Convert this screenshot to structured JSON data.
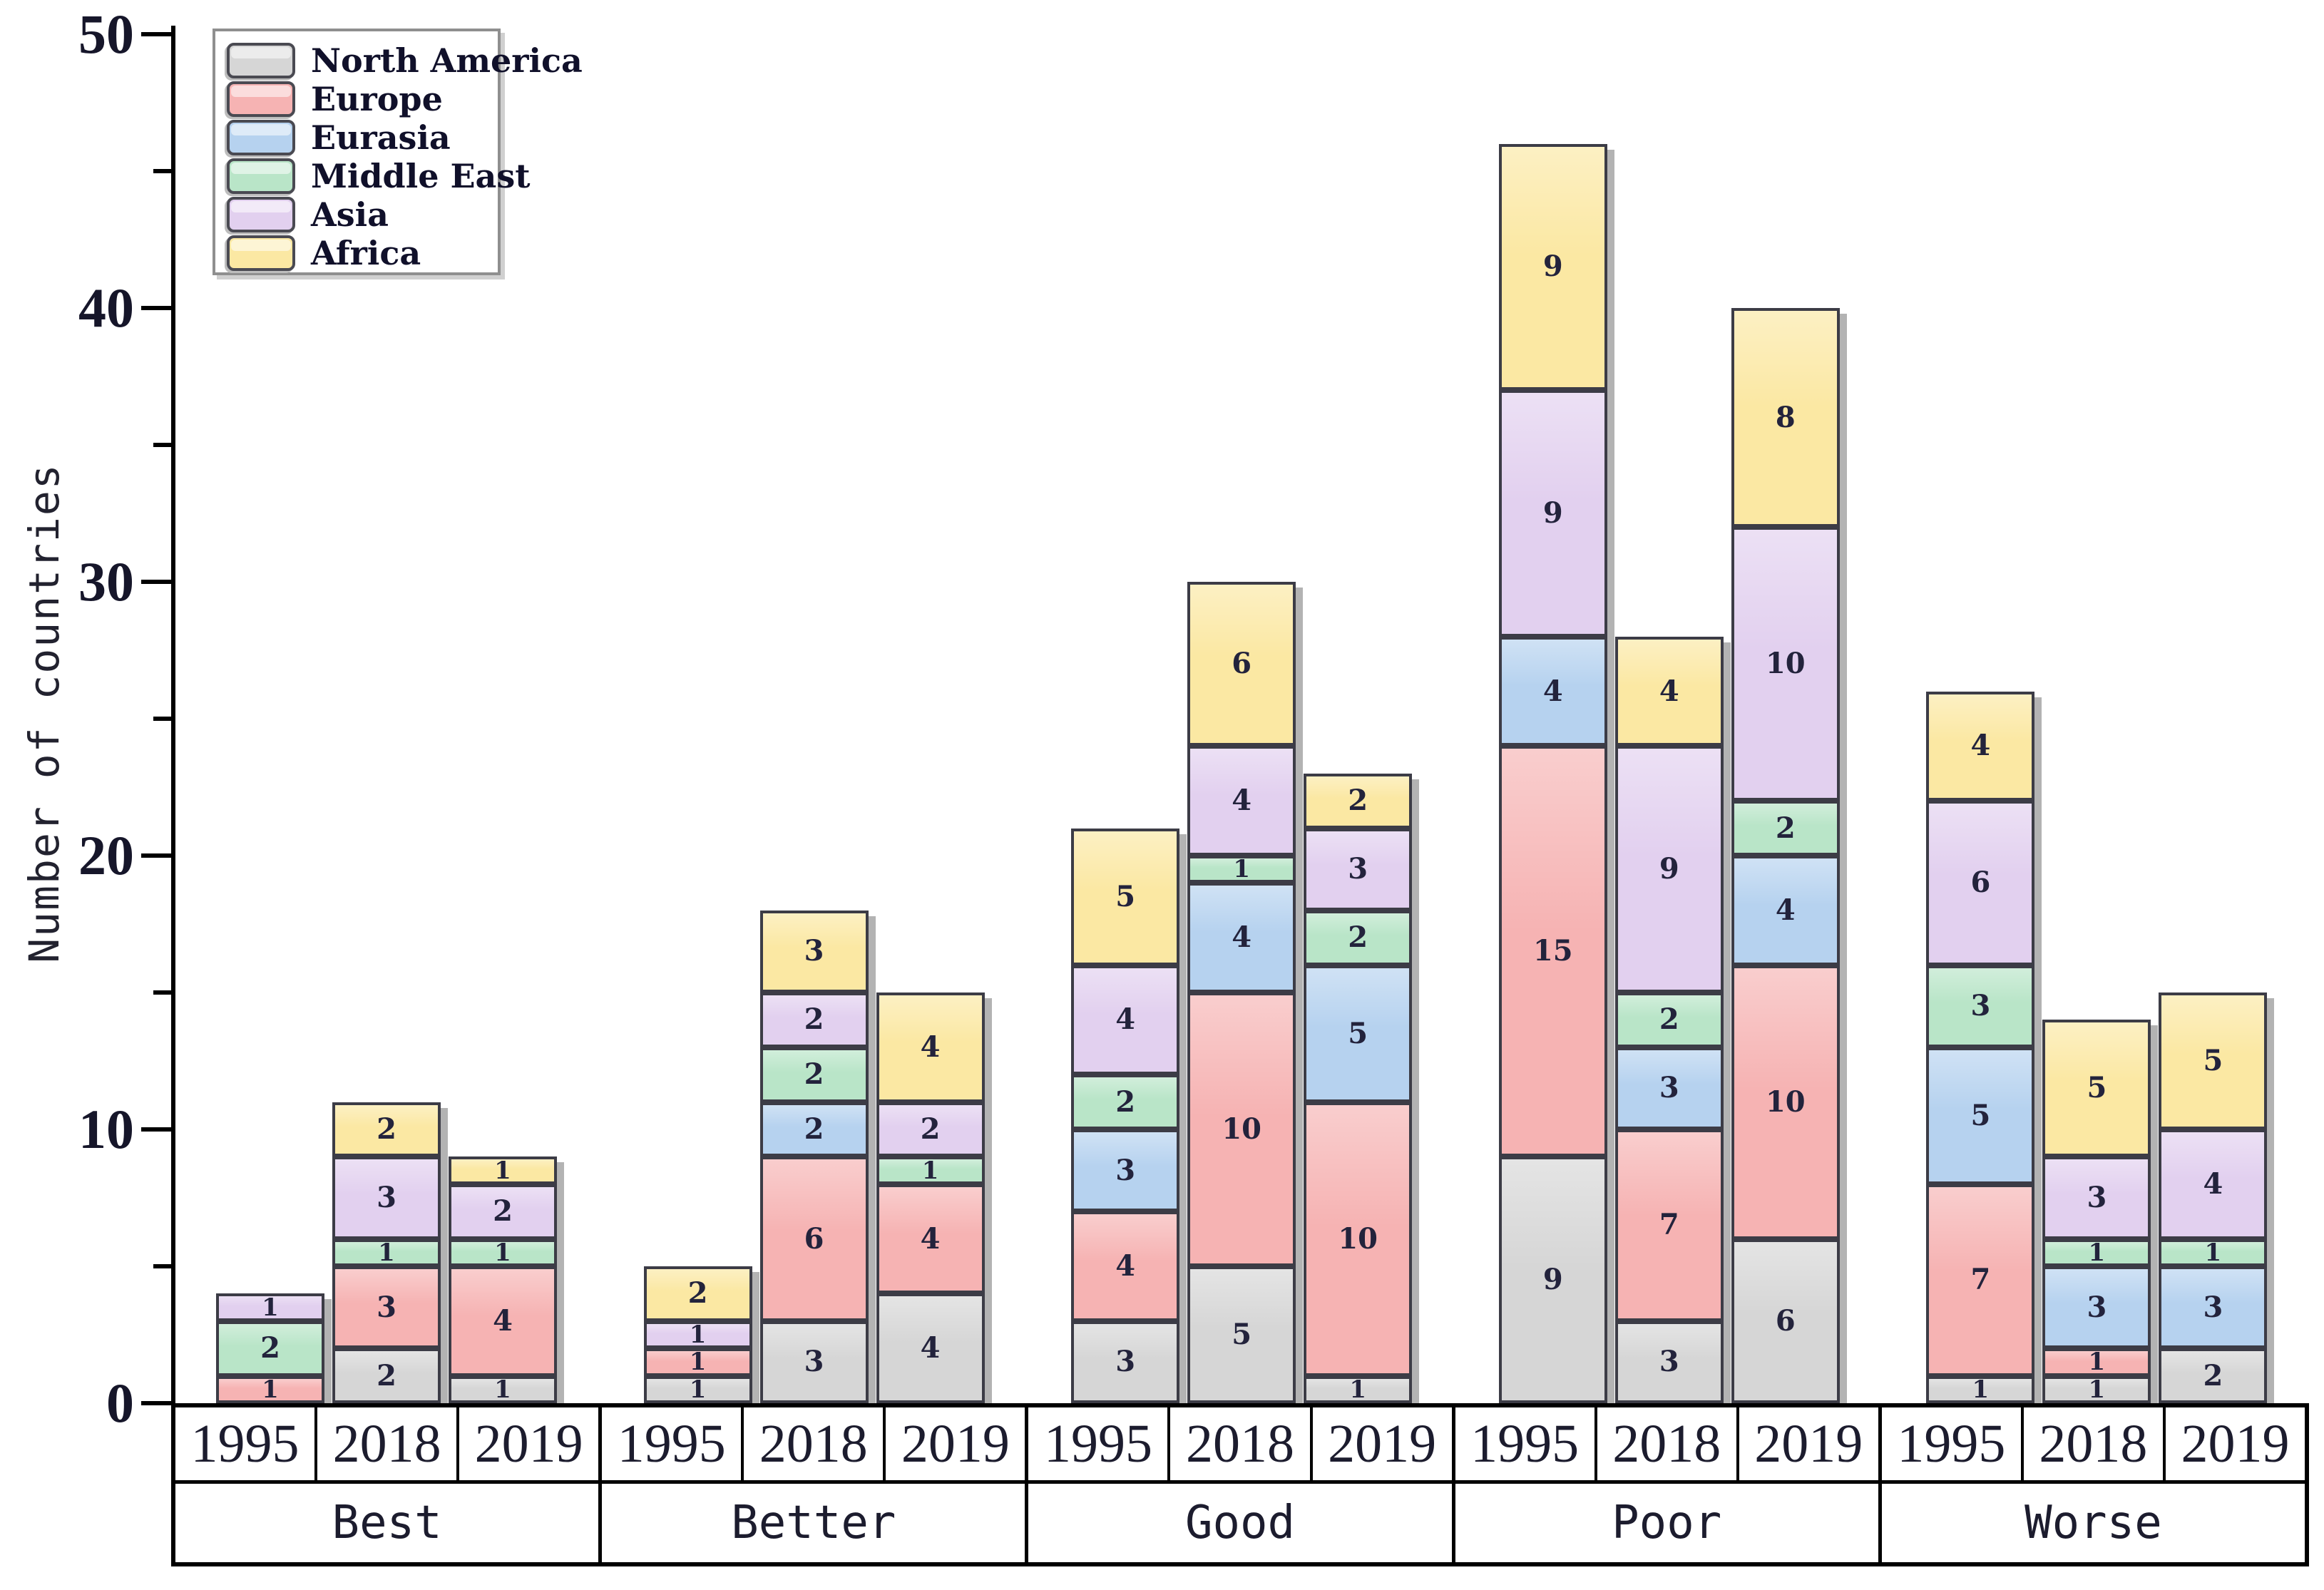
{
  "chart_data": {
    "type": "bar",
    "stacked": true,
    "ylabel": "Number of countries",
    "ylim": [
      0,
      50
    ],
    "yticks_major": [
      0,
      10,
      20,
      30,
      40,
      50
    ],
    "yticks_minor": [
      5,
      15,
      25,
      35,
      45
    ],
    "grid": false,
    "legend_position": "top-left",
    "group_labels": [
      "Best",
      "Better",
      "Good",
      "Poor",
      "Worse"
    ],
    "year_labels": [
      "1995",
      "2018",
      "2019"
    ],
    "categories": [
      "Best 1995",
      "Best 2018",
      "Best 2019",
      "Better 1995",
      "Better 2018",
      "Better 2019",
      "Good 1995",
      "Good 2018",
      "Good 2019",
      "Poor 1995",
      "Poor 2018",
      "Poor 2019",
      "Worse 1995",
      "Worse 2018",
      "Worse 2019"
    ],
    "series": [
      {
        "name": "North America",
        "color": "#d6d6d6",
        "values": [
          0,
          2,
          1,
          1,
          3,
          4,
          3,
          5,
          1,
          9,
          3,
          6,
          1,
          1,
          2
        ]
      },
      {
        "name": "Europe",
        "color": "#f6b3b3",
        "values": [
          1,
          3,
          4,
          1,
          6,
          4,
          4,
          10,
          10,
          15,
          7,
          10,
          7,
          1,
          0
        ]
      },
      {
        "name": "Eurasia",
        "color": "#b6d2ef",
        "values": [
          0,
          0,
          0,
          0,
          2,
          0,
          3,
          4,
          5,
          4,
          3,
          4,
          5,
          3,
          3
        ]
      },
      {
        "name": "Middle East",
        "color": "#b9e5c8",
        "values": [
          2,
          1,
          1,
          0,
          2,
          1,
          2,
          1,
          2,
          0,
          2,
          2,
          3,
          1,
          1
        ]
      },
      {
        "name": "Asia",
        "color": "#e2d0ef",
        "values": [
          1,
          3,
          2,
          1,
          2,
          2,
          4,
          4,
          3,
          9,
          9,
          10,
          6,
          3,
          4
        ]
      },
      {
        "name": "Africa",
        "color": "#fbe8a3",
        "values": [
          0,
          2,
          1,
          2,
          3,
          4,
          5,
          6,
          2,
          9,
          4,
          8,
          4,
          5,
          5
        ]
      }
    ],
    "totals": [
      4,
      11,
      9,
      5,
      18,
      15,
      21,
      30,
      23,
      46,
      28,
      40,
      26,
      14,
      15
    ]
  }
}
